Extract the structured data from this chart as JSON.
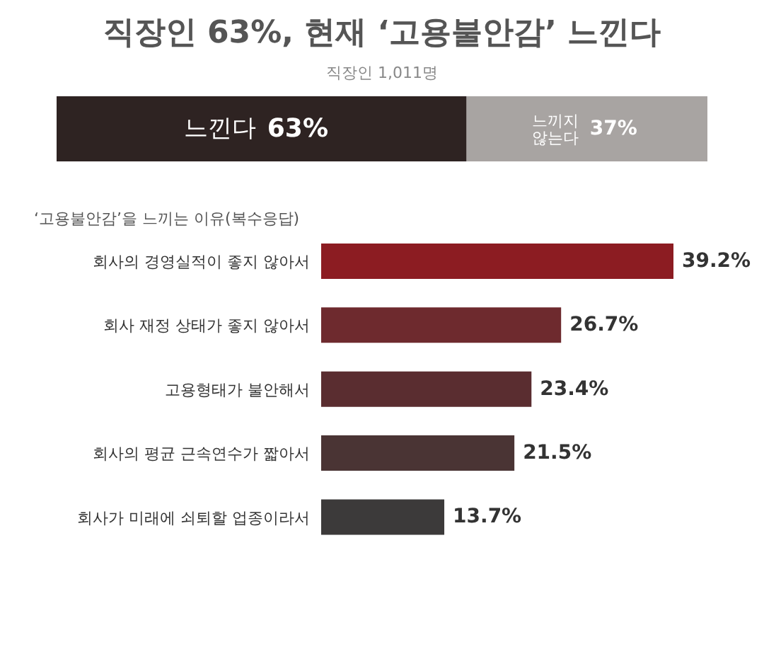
{
  "chart_data": [
    {
      "type": "bar",
      "orientation": "horizontal",
      "stacked": true,
      "title": "직장인 63%, 현재 ‘고용불안감’ 느낀다",
      "subtitle": "직장인 1,011명",
      "categories": [
        null
      ],
      "series": [
        {
          "name": "느낀다",
          "color": "#2e2322",
          "values": [
            63
          ],
          "value_labels": [
            "63%"
          ]
        },
        {
          "name": "느끼지 않는다",
          "color": "#a8a4a2",
          "values": [
            37
          ],
          "value_labels": [
            "37%"
          ]
        }
      ]
    },
    {
      "type": "bar",
      "orientation": "horizontal",
      "title": "‘고용불안감’을 느끼는 이유(복수응답)",
      "categories": [
        "회사의 경영실적이 좋지 않아서",
        "회사 재정 상태가 좋지 않아서",
        "고용형태가 불안해서",
        "회사의 평균 근속연수가 짧아서",
        "회사가 미래에 쇠퇴할 업종이라서"
      ],
      "values": [
        39.2,
        26.7,
        23.4,
        21.5,
        13.7
      ],
      "value_labels": [
        "39.2%",
        "26.7%",
        "23.4%",
        "21.5%",
        "13.7%"
      ],
      "colors": [
        "#8c1c22",
        "#6e2a2e",
        "#5a2d30",
        "#4a3434",
        "#3c3a3a"
      ]
    }
  ]
}
